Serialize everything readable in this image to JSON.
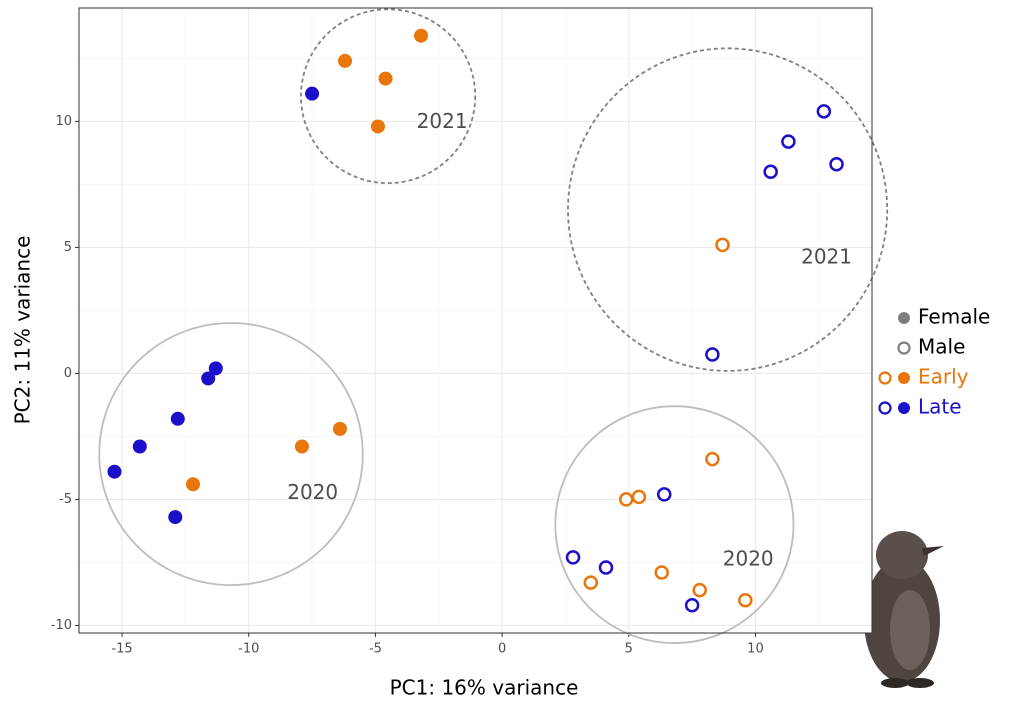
{
  "chart_data": {
    "type": "scatter",
    "x_label": "PC1: 16% variance",
    "y_label": "PC2: 11% variance",
    "xlim": [
      -16.7,
      14.6
    ],
    "ylim": [
      -10.3,
      14.5
    ],
    "xticks": [
      -15,
      -10,
      -5,
      0,
      5,
      10
    ],
    "yticks": [
      -10,
      -5,
      0,
      5,
      10
    ],
    "grid": true,
    "series": [
      {
        "color": "#e8760a",
        "filled": true,
        "x": [
          -6.2,
          -3.2,
          -4.6,
          -4.9,
          -7.9,
          -6.4,
          -12.2
        ],
        "values": [
          12.4,
          13.4,
          11.7,
          9.8,
          -2.9,
          -2.2,
          -4.4
        ]
      },
      {
        "color": "#1c0fc9",
        "filled": true,
        "x": [
          -7.5,
          -11.3,
          -11.6,
          -12.8,
          -14.3,
          -15.3,
          -12.9
        ],
        "values": [
          11.1,
          0.2,
          -0.2,
          -1.8,
          -2.9,
          -3.9,
          -5.7
        ]
      },
      {
        "color": "#e8760a",
        "filled": false,
        "x": [
          8.7,
          8.3,
          4.9,
          5.4,
          3.5,
          6.3,
          7.8,
          9.6
        ],
        "values": [
          5.1,
          -3.4,
          -5.0,
          -4.9,
          -8.3,
          -7.9,
          -8.6,
          -9.0
        ]
      },
      {
        "color": "#1c0fc9",
        "filled": false,
        "x": [
          12.7,
          11.3,
          10.6,
          13.2,
          8.3,
          6.4,
          2.8,
          4.1,
          7.5
        ],
        "values": [
          10.4,
          9.2,
          8.0,
          8.3,
          0.75,
          -4.8,
          -7.3,
          -7.7,
          -9.2
        ]
      }
    ],
    "ellipses": [
      {
        "label": "2021",
        "center": [
          -4.5,
          11.0
        ],
        "radius": [
          3.44,
          3.45
        ],
        "dashed": true
      },
      {
        "label": "2021",
        "center": [
          8.9,
          6.5
        ],
        "radius": [
          6.3,
          6.4
        ],
        "dashed": true
      },
      {
        "label": "2020",
        "center": [
          -10.7,
          -3.2
        ],
        "radius": [
          5.2,
          5.2
        ],
        "dashed": false
      },
      {
        "label": "2020",
        "center": [
          6.8,
          -6.0
        ],
        "radius": [
          4.7,
          4.7
        ],
        "dashed": false
      }
    ],
    "legend": {
      "shapes": [
        {
          "name": "Female",
          "filled": true
        },
        {
          "name": "Male",
          "filled": false
        }
      ],
      "colors": [
        {
          "name": "Early",
          "color": "#e8760a"
        },
        {
          "name": "Late",
          "color": "#1c0fc9"
        }
      ]
    }
  }
}
